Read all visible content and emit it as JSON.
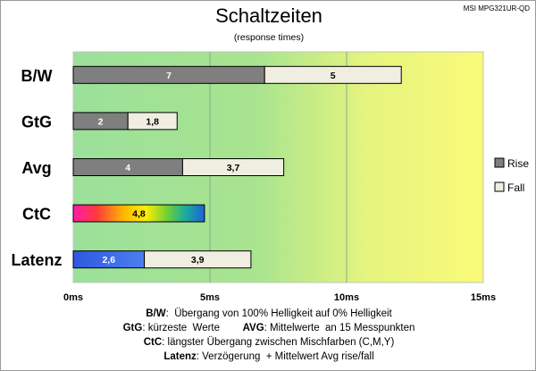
{
  "model": "MSI MPG321UR-QD",
  "notes": [
    {
      "key": "B/W",
      "text": ":  Übergang von 100% Helligkeit auf 0% Helligkeit"
    },
    {
      "key": "GtG",
      "text": ": kürzeste  Werte        ",
      "key2": "AVG",
      "text2": ": Mittelwerte  an 15 Messpunkten"
    },
    {
      "key": "CtC",
      "text": ": längster Übergang zwischen Mischfarben (C,M,Y)"
    },
    {
      "key": "Latenz",
      "text": ": Verzögerung  + Mittelwert Avg rise/fall"
    }
  ],
  "colors": {
    "rise": "#7f7f7f",
    "fall": "#f0ede1",
    "latency": "#3f6fe5",
    "grid": "#8aaa8a",
    "bg_left": "#9be09a",
    "bg_right": "#fafa7a"
  },
  "chart_data": {
    "type": "bar",
    "orientation": "horizontal",
    "stacked": true,
    "title": "Schaltzeiten",
    "subtitle": "(response times)",
    "categories": [
      "B/W",
      "GtG",
      "Avg",
      "CtC",
      "Latenz"
    ],
    "series": [
      {
        "name": "Rise",
        "values": [
          7,
          2,
          4,
          4.8,
          2.6
        ],
        "labels": [
          "7",
          "2",
          "4",
          "4,8",
          "2,6"
        ]
      },
      {
        "name": "Fall",
        "values": [
          5,
          1.8,
          3.7,
          null,
          3.9
        ],
        "labels": [
          "5",
          "1,8",
          "3,7",
          "",
          "3,9"
        ]
      }
    ],
    "special_fills": {
      "CtC": "rainbow",
      "Latenz": "latency"
    },
    "xlim": [
      0,
      15
    ],
    "xticks": [
      0,
      5,
      10,
      15
    ],
    "xtick_labels": [
      "0ms",
      "5ms",
      "10ms",
      "15ms"
    ],
    "grid": true,
    "legend": "right"
  }
}
